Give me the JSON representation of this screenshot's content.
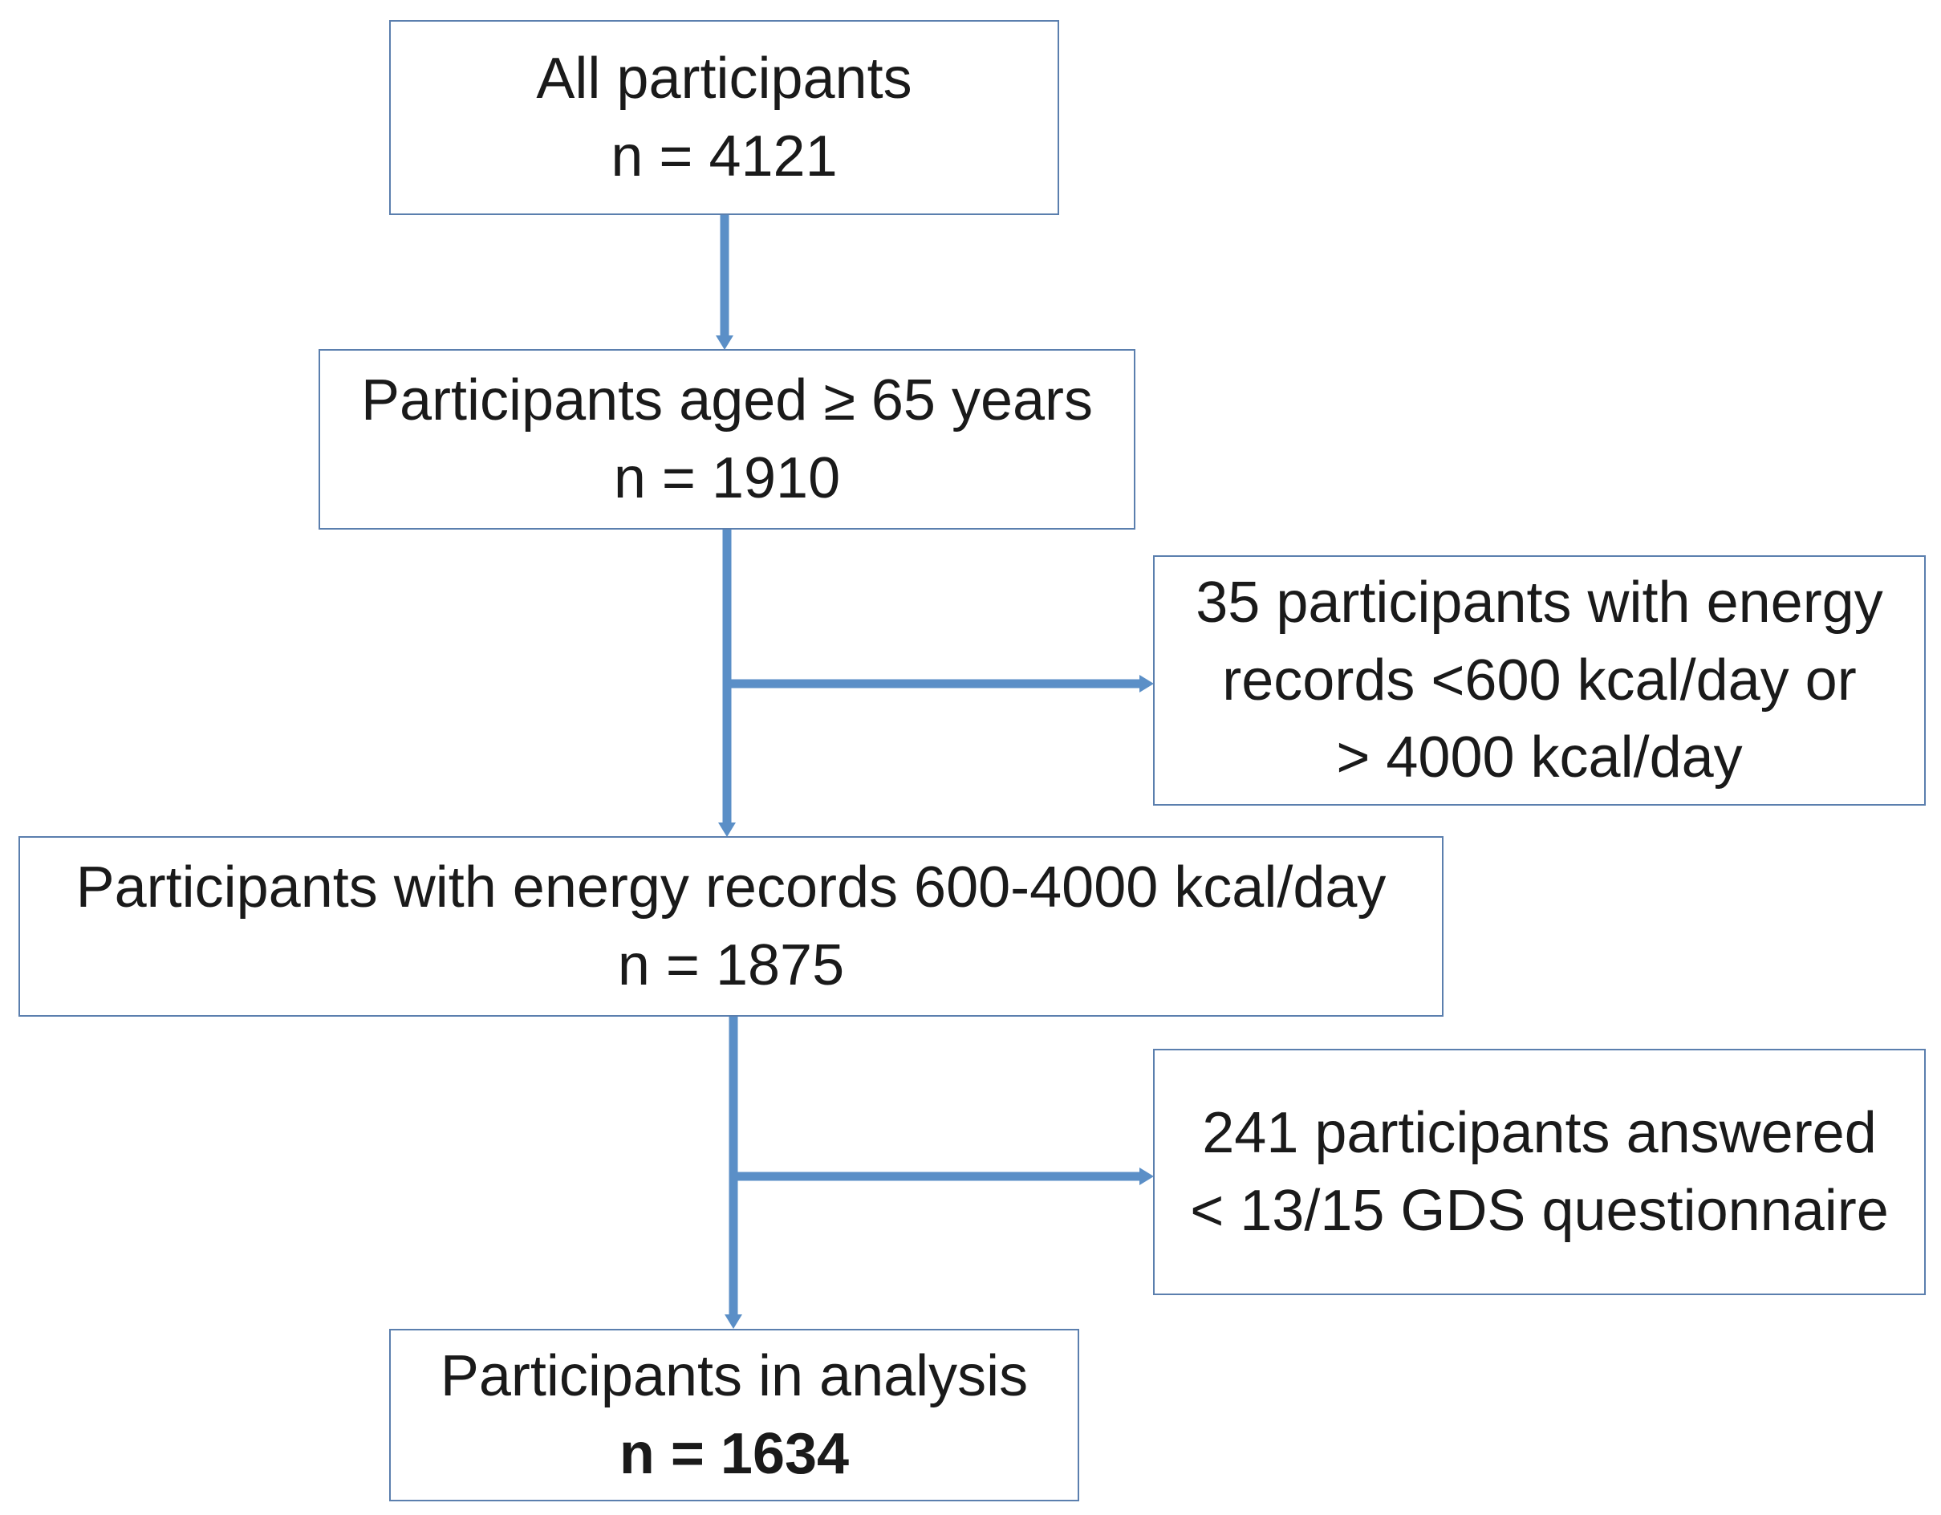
{
  "colors": {
    "arrow": "#5b8fc7",
    "box_border": "#5b7fae",
    "text": "#1a1a1a",
    "background": "#ffffff"
  },
  "boxes": {
    "all_participants": {
      "title": "All participants",
      "count": "n = 4121"
    },
    "aged_65": {
      "title": "Participants aged ≥ 65 years",
      "count": "n = 1910"
    },
    "exclusion_energy": {
      "line1": "35 participants with energy",
      "line2": "records <600 kcal/day or",
      "line3": "> 4000 kcal/day"
    },
    "energy_records": {
      "title": "Participants with energy records 600-4000 kcal/day",
      "count": "n = 1875"
    },
    "exclusion_gds": {
      "line1": "241 participants answered",
      "line2": "< 13/15 GDS questionnaire"
    },
    "analysis": {
      "title": "Participants in analysis",
      "count": "n = 1634"
    }
  }
}
